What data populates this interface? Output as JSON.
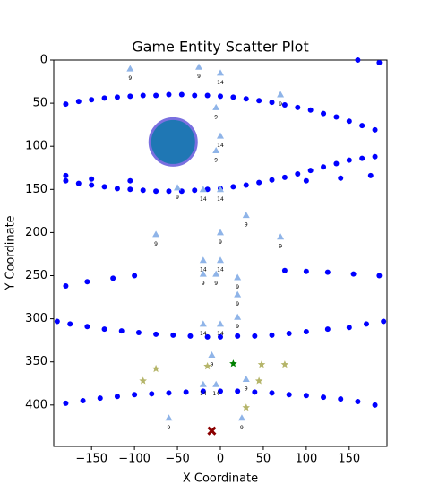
{
  "chart_data": {
    "type": "scatter",
    "title": "Game Entity Scatter Plot",
    "x_label": "X Coordinate",
    "y_label": "Y Coordinate",
    "xlim": [
      -194,
      194
    ],
    "ylim": [
      448,
      0
    ],
    "xticks": [
      {
        "value": -150,
        "label": "−150"
      },
      {
        "value": -100,
        "label": "−100"
      },
      {
        "value": -50,
        "label": "−50"
      },
      0,
      50,
      100,
      150
    ],
    "yticks": [
      0,
      50,
      100,
      150,
      200,
      250,
      300,
      350,
      400
    ],
    "series": [
      {
        "marker": "circle",
        "color": "#0000ff",
        "x": [
          -180,
          -165,
          -150,
          -135,
          -120,
          -105,
          -90,
          -75,
          -60,
          -45,
          -30,
          -15,
          0,
          15,
          30,
          45,
          60,
          75,
          90,
          105,
          120,
          135,
          150,
          165,
          180,
          -180,
          -165,
          -150,
          -135,
          -120,
          -105,
          -90,
          -75,
          -60,
          -45,
          -30,
          -15,
          0,
          15,
          30,
          45,
          60,
          75,
          90,
          105,
          120,
          135,
          150,
          165,
          180,
          -180,
          -150,
          -105,
          100,
          140,
          175,
          160,
          185,
          -180,
          -155,
          -125,
          -100,
          75,
          100,
          125,
          155,
          185,
          -190,
          -175,
          -155,
          -135,
          -115,
          -95,
          -75,
          -55,
          -35,
          -15,
          0,
          20,
          40,
          60,
          80,
          100,
          125,
          150,
          170,
          190,
          -180,
          -160,
          -140,
          -120,
          -100,
          -80,
          -60,
          -40,
          -20,
          0,
          20,
          40,
          60,
          80,
          100,
          120,
          140,
          160,
          180
        ],
        "y": [
          51,
          48,
          46,
          44,
          43,
          42,
          41,
          41,
          40,
          40,
          41,
          41,
          42,
          43,
          45,
          47,
          49,
          52,
          55,
          58,
          62,
          66,
          71,
          76,
          81,
          140,
          143,
          145,
          147,
          149,
          150,
          151,
          152,
          152,
          152,
          151,
          150,
          149,
          147,
          145,
          142,
          139,
          136,
          132,
          128,
          124,
          120,
          116,
          114,
          112,
          134,
          138,
          140,
          140,
          137,
          134,
          0,
          3,
          262,
          257,
          253,
          250,
          244,
          245,
          246,
          248,
          250,
          303,
          306,
          309,
          312,
          314,
          316,
          318,
          319,
          320,
          321,
          321,
          320,
          320,
          319,
          317,
          315,
          312,
          310,
          306,
          303,
          398,
          395,
          392,
          390,
          388,
          387,
          386,
          385,
          384,
          384,
          384,
          385,
          386,
          388,
          389,
          391,
          393,
          396,
          400
        ]
      },
      {
        "marker": "triangle",
        "color": "#8fb4e8",
        "x": [
          -105,
          -25,
          0,
          70,
          -5,
          0,
          -5,
          -50,
          -20,
          0,
          30,
          -75,
          0,
          70,
          -20,
          0,
          -20,
          -5,
          20,
          20,
          -20,
          0,
          20,
          -10,
          -20,
          -5,
          30,
          -60,
          25
        ],
        "y": [
          10,
          8,
          15,
          40,
          55,
          88,
          105,
          148,
          150,
          150,
          180,
          202,
          200,
          205,
          232,
          232,
          248,
          248,
          252,
          272,
          306,
          306,
          298,
          342,
          376,
          376,
          370,
          415,
          415
        ],
        "labels": [
          "9",
          "9",
          "14",
          "9",
          "9",
          "14",
          "9",
          "9",
          "14",
          "14",
          "9",
          "9",
          "9",
          "9",
          "14",
          "14",
          "9",
          "9",
          "9",
          "9",
          "14",
          "14",
          "9",
          "9",
          "14",
          "14",
          "9",
          "9",
          "9"
        ]
      },
      {
        "marker": "big-circle",
        "color": "#1f77b4",
        "x": [
          -55
        ],
        "y": [
          95
        ],
        "size": [
          26
        ]
      },
      {
        "marker": "star",
        "color": "#b5b56a",
        "x": [
          -90,
          -75,
          -15,
          48,
          75,
          45,
          30
        ],
        "y": [
          372,
          358,
          355,
          353,
          353,
          372,
          403
        ]
      },
      {
        "marker": "star",
        "color": "#008000",
        "x": [
          15
        ],
        "y": [
          352
        ]
      },
      {
        "marker": "x",
        "color": "#8b0000",
        "x": [
          -10
        ],
        "y": [
          430
        ]
      }
    ]
  }
}
